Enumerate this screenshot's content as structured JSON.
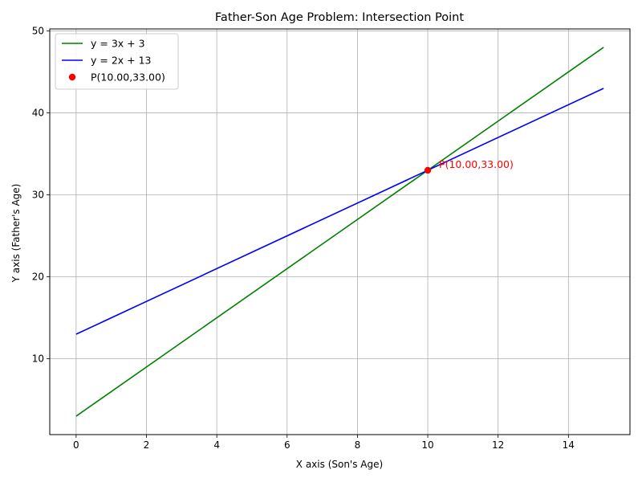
{
  "chart_data": {
    "type": "line",
    "title": "Father-Son Age Problem: Intersection Point",
    "xlabel": "X axis (Son's Age)",
    "ylabel": "Y axis (Father's Age)",
    "xlim": [
      -0.75,
      15.75
    ],
    "ylim": [
      0.75,
      50.25
    ],
    "xticks": [
      0,
      2,
      4,
      6,
      8,
      10,
      12,
      14
    ],
    "yticks": [
      10,
      20,
      30,
      40,
      50
    ],
    "grid": true,
    "legend_position": "top-left",
    "series": [
      {
        "name": "y = 3x + 3",
        "color": "#008000",
        "x": [
          0,
          15
        ],
        "y": [
          3,
          48
        ]
      },
      {
        "name": "y = 2x + 13",
        "color": "#0000ff",
        "x": [
          0,
          15
        ],
        "y": [
          13,
          43
        ]
      }
    ],
    "points": [
      {
        "name": "P(10.00,33.00)",
        "x": 10,
        "y": 33,
        "color": "#ff0000"
      }
    ],
    "annotations": [
      {
        "text": "P(10.00,33.00)",
        "x": 10,
        "y": 33,
        "color": "#ff0000"
      }
    ]
  }
}
